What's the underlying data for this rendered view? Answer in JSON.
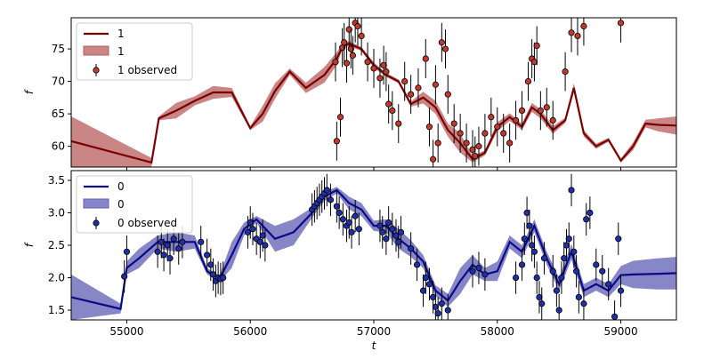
{
  "chart_data": [
    {
      "type": "line",
      "xlabel": "",
      "ylabel": "f",
      "xlim": [
        54550,
        59450
      ],
      "ylim": [
        56.8,
        79.8
      ],
      "x_ticks": [
        55000,
        56000,
        57000,
        58000,
        59000
      ],
      "y_ticks": [
        60,
        65,
        70,
        75
      ],
      "y_tick_labels": [
        "60",
        "65",
        "70",
        "75"
      ],
      "legend": {
        "position": "top-left",
        "entries": [
          "1",
          "1",
          "1 observed"
        ]
      },
      "colors": {
        "line": "#7a0000",
        "band": "#b85c5c",
        "marker": "#c0392b"
      },
      "series": [
        {
          "name": "1",
          "kind": "mean_line",
          "x": [
            54550,
            55200,
            55260,
            55400,
            55550,
            55700,
            55850,
            56000,
            56100,
            56200,
            56320,
            56450,
            56600,
            56700,
            56750,
            56800,
            56900,
            57000,
            57100,
            57200,
            57300,
            57400,
            57500,
            57600,
            57700,
            57800,
            57900,
            58000,
            58100,
            58200,
            58280,
            58350,
            58450,
            58550,
            58620,
            58700,
            58800,
            58900,
            59000,
            59100,
            59200,
            59300,
            59450
          ],
          "y": [
            60.8,
            57.5,
            64.3,
            65.5,
            67.0,
            68.3,
            68.3,
            62.8,
            65.0,
            68.5,
            71.5,
            69.0,
            71.0,
            73.5,
            75.5,
            75.8,
            75.0,
            72.5,
            71.0,
            70.0,
            66.5,
            67.5,
            66.0,
            62.5,
            60.5,
            58.0,
            59.0,
            63.0,
            64.5,
            63.0,
            66.0,
            65.0,
            62.5,
            64.0,
            69.0,
            62.0,
            60.0,
            61.0,
            57.8,
            60.0,
            63.5,
            63.3,
            63.2
          ]
        },
        {
          "name": "1",
          "kind": "uncertainty_band",
          "x": [
            54550,
            55200,
            55260,
            55400,
            55550,
            55700,
            55850,
            56000,
            56100,
            56200,
            56320,
            56450,
            56600,
            56700,
            56750,
            56800,
            56900,
            57000,
            57100,
            57200,
            57300,
            57400,
            57500,
            57600,
            57700,
            57800,
            57900,
            58000,
            58100,
            58200,
            58280,
            58350,
            58450,
            58550,
            58620,
            58700,
            58800,
            58900,
            59000,
            59100,
            59200,
            59300,
            59450
          ],
          "lower": [
            56.8,
            56.8,
            64.0,
            64.3,
            66.3,
            67.3,
            67.6,
            62.5,
            63.8,
            67.3,
            71.0,
            68.2,
            69.8,
            72.5,
            75.1,
            75.4,
            74.7,
            72.1,
            70.7,
            69.7,
            66.1,
            66.6,
            65.0,
            61.5,
            59.0,
            57.5,
            58.6,
            62.3,
            63.9,
            62.5,
            65.3,
            64.3,
            61.9,
            63.6,
            68.3,
            61.5,
            59.6,
            60.7,
            57.5,
            59.4,
            62.9,
            62.3,
            61.8
          ],
          "upper": [
            64.6,
            58.2,
            64.6,
            66.7,
            67.7,
            69.3,
            69.0,
            63.1,
            66.2,
            69.7,
            72.0,
            69.8,
            72.2,
            74.5,
            75.9,
            76.2,
            75.3,
            72.9,
            71.3,
            70.3,
            66.9,
            68.4,
            67.0,
            63.5,
            62.0,
            58.5,
            59.4,
            63.7,
            65.1,
            63.5,
            66.7,
            65.7,
            63.1,
            64.4,
            69.7,
            62.5,
            60.4,
            61.3,
            58.1,
            60.6,
            64.1,
            64.3,
            64.6
          ]
        },
        {
          "name": "1 observed",
          "kind": "observed_points",
          "x": [
            56690,
            56700,
            56730,
            56745,
            56760,
            56780,
            56800,
            56815,
            56830,
            56850,
            56870,
            56900,
            56950,
            57000,
            57050,
            57080,
            57100,
            57120,
            57150,
            57200,
            57250,
            57300,
            57360,
            57420,
            57450,
            57480,
            57500,
            57520,
            57550,
            57580,
            57600,
            57650,
            57700,
            57750,
            57800,
            57820,
            57850,
            57900,
            57950,
            58000,
            58050,
            58100,
            58150,
            58200,
            58250,
            58280,
            58300,
            58320,
            58350,
            58400,
            58450,
            58550,
            58600,
            58650,
            58700,
            59000
          ],
          "y": [
            73.0,
            60.8,
            64.5,
            75.2,
            76.0,
            72.8,
            78.0,
            75.0,
            74.0,
            79.0,
            78.5,
            77.0,
            73.0,
            72.0,
            70.5,
            72.5,
            71.5,
            66.5,
            65.5,
            63.5,
            70.0,
            68.0,
            69.0,
            73.5,
            63.0,
            58.0,
            69.5,
            60.5,
            76.0,
            75.0,
            68.0,
            63.5,
            62.0,
            60.5,
            59.5,
            58.5,
            60.0,
            62.0,
            64.5,
            63.0,
            62.0,
            60.5,
            64.0,
            65.5,
            70.0,
            73.5,
            73.0,
            75.5,
            65.5,
            66.0,
            64.0,
            71.5,
            77.5,
            77.0,
            78.5,
            79.0
          ],
          "err": [
            3,
            3,
            3,
            3,
            3,
            3,
            3,
            3,
            3,
            3,
            3,
            3,
            3,
            3,
            3,
            3,
            3,
            3,
            3,
            3,
            3,
            3,
            3,
            3,
            3,
            3,
            3,
            3,
            3,
            3,
            3,
            3,
            3,
            3,
            3,
            3,
            3,
            3,
            3,
            3,
            3,
            3,
            3,
            3,
            3,
            3,
            3,
            3,
            3,
            3,
            3,
            3,
            3,
            3,
            3,
            3
          ]
        }
      ]
    },
    {
      "type": "line",
      "xlabel": "t",
      "ylabel": "f",
      "xlim": [
        54550,
        59450
      ],
      "ylim": [
        1.35,
        3.65
      ],
      "x_ticks": [
        55000,
        56000,
        57000,
        58000,
        59000
      ],
      "x_tick_labels": [
        "55000",
        "56000",
        "57000",
        "58000",
        "59000"
      ],
      "y_ticks": [
        1.5,
        2.0,
        2.5,
        3.0,
        3.5
      ],
      "y_tick_labels": [
        "1.5",
        "2.0",
        "2.5",
        "3.0",
        "3.5"
      ],
      "legend": {
        "position": "top-left",
        "entries": [
          "0",
          "0",
          "0 observed"
        ]
      },
      "colors": {
        "line": "#0a0a8a",
        "band": "#5f5fb5",
        "marker": "#1f2fa8"
      },
      "series": [
        {
          "name": "0",
          "kind": "mean_line",
          "x": [
            54550,
            54950,
            55000,
            55100,
            55250,
            55400,
            55550,
            55650,
            55750,
            55850,
            55950,
            56050,
            56200,
            56350,
            56500,
            56600,
            56700,
            56800,
            56900,
            57000,
            57100,
            57200,
            57300,
            57400,
            57500,
            57600,
            57700,
            57800,
            57900,
            58000,
            58100,
            58200,
            58300,
            58400,
            58500,
            58600,
            58700,
            58800,
            58900,
            59000,
            59100,
            59300,
            59450
          ],
          "y": [
            1.7,
            1.52,
            2.15,
            2.3,
            2.55,
            2.55,
            2.55,
            2.1,
            1.98,
            2.35,
            2.75,
            2.9,
            2.6,
            2.7,
            3.0,
            3.25,
            3.35,
            3.15,
            3.05,
            2.8,
            2.8,
            2.6,
            2.45,
            2.25,
            1.8,
            1.65,
            1.95,
            2.2,
            2.05,
            2.1,
            2.55,
            2.4,
            2.8,
            2.3,
            1.9,
            2.4,
            1.8,
            1.9,
            1.8,
            2.04,
            2.05,
            2.06,
            2.07
          ]
        },
        {
          "name": "0",
          "kind": "uncertainty_band",
          "x": [
            54550,
            54950,
            55000,
            55100,
            55250,
            55400,
            55550,
            55650,
            55750,
            55850,
            55950,
            56050,
            56200,
            56350,
            56500,
            56600,
            56700,
            56800,
            56900,
            57000,
            57100,
            57200,
            57300,
            57400,
            57500,
            57600,
            57700,
            57800,
            57900,
            58000,
            58100,
            58200,
            58300,
            58400,
            58500,
            58600,
            58700,
            58800,
            58900,
            59000,
            59100,
            59300,
            59450
          ],
          "lower": [
            1.35,
            1.45,
            2.05,
            2.15,
            2.45,
            2.4,
            2.45,
            2.05,
            1.93,
            2.15,
            2.65,
            2.85,
            2.4,
            2.5,
            2.92,
            3.18,
            3.3,
            3.05,
            2.95,
            2.72,
            2.7,
            2.45,
            2.32,
            2.15,
            1.72,
            1.55,
            1.75,
            2.05,
            1.95,
            1.95,
            2.45,
            2.3,
            2.7,
            2.2,
            1.8,
            2.28,
            1.7,
            1.8,
            1.7,
            1.9,
            1.84,
            1.82,
            1.82
          ],
          "upper": [
            2.05,
            1.6,
            2.25,
            2.45,
            2.65,
            2.7,
            2.65,
            2.15,
            2.03,
            2.55,
            2.85,
            2.95,
            2.8,
            2.9,
            3.08,
            3.32,
            3.4,
            3.25,
            3.15,
            2.88,
            2.9,
            2.75,
            2.58,
            2.35,
            1.88,
            1.75,
            2.15,
            2.35,
            2.15,
            2.25,
            2.65,
            2.5,
            2.9,
            2.4,
            2.0,
            2.52,
            1.9,
            2.0,
            1.9,
            2.18,
            2.26,
            2.3,
            2.32
          ]
        },
        {
          "name": "0 observed",
          "kind": "observed_points",
          "x": [
            54980,
            55000,
            55250,
            55280,
            55300,
            55330,
            55350,
            55380,
            55420,
            55450,
            55600,
            55650,
            55680,
            55700,
            55720,
            55740,
            55760,
            55780,
            55980,
            56000,
            56020,
            56050,
            56080,
            56100,
            56120,
            56500,
            56520,
            56540,
            56560,
            56580,
            56600,
            56620,
            56650,
            56700,
            56720,
            56750,
            56780,
            56800,
            56820,
            56850,
            56880,
            57050,
            57070,
            57100,
            57120,
            57150,
            57180,
            57200,
            57220,
            57300,
            57350,
            57400,
            57420,
            57450,
            57480,
            57500,
            57520,
            57550,
            57600,
            57800,
            57850,
            57900,
            58150,
            58200,
            58220,
            58240,
            58260,
            58280,
            58300,
            58320,
            58340,
            58360,
            58380,
            58450,
            58480,
            58500,
            58520,
            58540,
            58560,
            58580,
            58600,
            58620,
            58640,
            58660,
            58700,
            58720,
            58750,
            58800,
            58850,
            58900,
            58950,
            58980,
            59000
          ],
          "y": [
            2.02,
            2.4,
            2.4,
            2.55,
            2.35,
            2.5,
            2.3,
            2.6,
            2.45,
            2.55,
            2.55,
            2.35,
            2.2,
            2.05,
            1.95,
            2.0,
            1.98,
            2.0,
            2.7,
            2.85,
            2.75,
            2.6,
            2.55,
            2.65,
            2.5,
            3.05,
            3.1,
            3.15,
            3.2,
            3.25,
            3.3,
            3.35,
            3.2,
            3.1,
            3.0,
            2.9,
            2.8,
            2.85,
            2.7,
            2.95,
            2.75,
            2.8,
            2.7,
            2.6,
            2.85,
            2.75,
            2.65,
            2.55,
            2.7,
            2.45,
            2.2,
            1.8,
            2.0,
            1.9,
            1.7,
            1.55,
            1.45,
            1.6,
            1.5,
            2.1,
            2.15,
            2.05,
            2.0,
            2.2,
            2.6,
            3.0,
            2.8,
            2.5,
            2.4,
            2.0,
            1.7,
            1.6,
            2.3,
            2.1,
            1.8,
            1.5,
            2.0,
            2.3,
            2.5,
            2.6,
            3.35,
            2.4,
            2.1,
            1.7,
            1.6,
            2.9,
            3.0,
            2.2,
            2.1,
            1.9,
            1.4,
            2.6,
            1.8
          ],
          "err": [
            0.25,
            0.25,
            0.25,
            0.25,
            0.25,
            0.25,
            0.25,
            0.25,
            0.25,
            0.25,
            0.25,
            0.25,
            0.25,
            0.25,
            0.25,
            0.25,
            0.25,
            0.25,
            0.25,
            0.25,
            0.25,
            0.25,
            0.25,
            0.25,
            0.25,
            0.25,
            0.25,
            0.25,
            0.25,
            0.25,
            0.25,
            0.25,
            0.25,
            0.25,
            0.25,
            0.25,
            0.25,
            0.25,
            0.25,
            0.25,
            0.25,
            0.25,
            0.25,
            0.25,
            0.25,
            0.25,
            0.25,
            0.25,
            0.25,
            0.25,
            0.25,
            0.25,
            0.25,
            0.25,
            0.25,
            0.25,
            0.25,
            0.25,
            0.25,
            0.25,
            0.25,
            0.25,
            0.25,
            0.25,
            0.25,
            0.25,
            0.25,
            0.25,
            0.25,
            0.25,
            0.25,
            0.25,
            0.25,
            0.25,
            0.25,
            0.25,
            0.25,
            0.25,
            0.25,
            0.25,
            0.25,
            0.25,
            0.25,
            0.25,
            0.25,
            0.25,
            0.25,
            0.25,
            0.25,
            0.25,
            0.25,
            0.25,
            0.25
          ]
        }
      ]
    }
  ]
}
